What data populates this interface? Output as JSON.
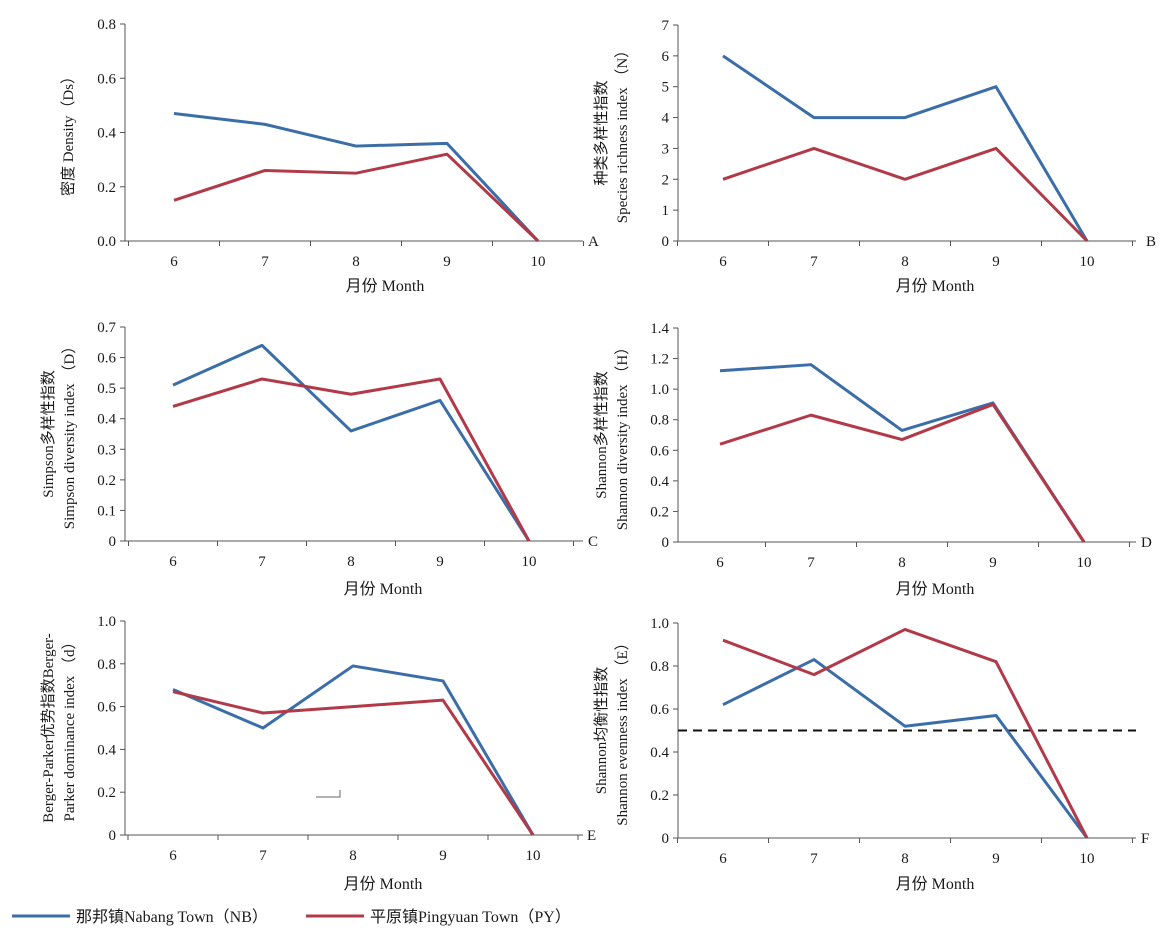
{
  "legend": {
    "items": [
      {
        "name": "那邦镇Nabang Town（NB）",
        "color": "#3b6ea8"
      },
      {
        "name": "平原镇Pingyuan Town（PY）",
        "color": "#b23a48"
      }
    ]
  },
  "chart_data": [
    {
      "type": "line",
      "panel": "A",
      "x": [
        6,
        7,
        8,
        9,
        10
      ],
      "xlabel": "月份  Month",
      "ylabel": "密度  Density（Ds）",
      "ylim": [
        0,
        0.8
      ],
      "yticks": [
        "0.0",
        "0.2",
        "0.4",
        "0.6",
        "0.8"
      ],
      "series": [
        {
          "name": "那邦镇Nabang Town（NB）",
          "values": [
            0.47,
            0.43,
            0.35,
            0.36,
            0.0
          ]
        },
        {
          "name": "平原镇Pingyuan Town（PY）",
          "values": [
            0.15,
            0.26,
            0.25,
            0.32,
            0.0
          ]
        }
      ]
    },
    {
      "type": "line",
      "panel": "B",
      "x": [
        6,
        7,
        8,
        9,
        10
      ],
      "xlabel": "月份  Month",
      "ylabel": [
        "种类多样性指数",
        "Species  richness  index  （N）"
      ],
      "ylim": [
        0,
        7
      ],
      "yticks": [
        "0",
        "1",
        "2",
        "3",
        "4",
        "5",
        "6",
        "7"
      ],
      "series": [
        {
          "name": "那邦镇Nabang Town（NB）",
          "values": [
            6,
            4,
            4,
            5,
            0
          ]
        },
        {
          "name": "平原镇Pingyuan Town（PY）",
          "values": [
            2,
            3,
            2,
            3,
            0
          ]
        }
      ]
    },
    {
      "type": "line",
      "panel": "C",
      "x": [
        6,
        7,
        8,
        9,
        10
      ],
      "xlabel": "月份  Month",
      "ylabel": [
        "Simpson多样性指数",
        "Simpson  diversity  index  （D）"
      ],
      "ylim": [
        0,
        0.7
      ],
      "yticks": [
        "0",
        "0.1",
        "0.2",
        "0.3",
        "0.4",
        "0.5",
        "0.6",
        "0.7"
      ],
      "series": [
        {
          "name": "那邦镇Nabang Town（NB）",
          "values": [
            0.51,
            0.64,
            0.36,
            0.46,
            0.0
          ]
        },
        {
          "name": "平原镇Pingyuan Town（PY）",
          "values": [
            0.44,
            0.53,
            0.48,
            0.53,
            0.0
          ]
        }
      ]
    },
    {
      "type": "line",
      "panel": "D",
      "x": [
        6,
        7,
        8,
        9,
        10
      ],
      "xlabel": "月份  Month",
      "ylabel": [
        "Shannon多样性指数",
        "Shannon  diversity  index  （H）"
      ],
      "ylim": [
        0,
        1.4
      ],
      "yticks": [
        "0",
        "0.2",
        "0.4",
        "0.6",
        "0.8",
        "1.0",
        "1.2",
        "1.4"
      ],
      "series": [
        {
          "name": "那邦镇Nabang Town（NB）",
          "values": [
            1.12,
            1.16,
            0.73,
            0.91,
            0.0
          ]
        },
        {
          "name": "平原镇Pingyuan Town（PY）",
          "values": [
            0.64,
            0.83,
            0.67,
            0.9,
            0.0
          ]
        }
      ]
    },
    {
      "type": "line",
      "panel": "E",
      "x": [
        6,
        7,
        8,
        9,
        10
      ],
      "xlabel": "月份  Month",
      "ylabel": [
        "Berger-Parker优势指数Berger-",
        "Parker  dominance  index  （d）"
      ],
      "ylim": [
        0,
        1.0
      ],
      "yticks": [
        "0",
        "0.2",
        "0.4",
        "0.6",
        "0.8",
        "1.0"
      ],
      "series": [
        {
          "name": "那邦镇Nabang Town（NB）",
          "values": [
            0.68,
            0.5,
            0.79,
            0.72,
            0.0
          ]
        },
        {
          "name": "平原镇Pingyuan Town（PY）",
          "values": [
            0.67,
            0.57,
            0.6,
            0.63,
            0.0
          ]
        }
      ]
    },
    {
      "type": "line",
      "panel": "F",
      "x": [
        6,
        7,
        8,
        9,
        10
      ],
      "xlabel": "月份  Month",
      "ylabel": [
        "Shannon均衡性指数",
        "Shannon  evenness  index  （E）"
      ],
      "ylim": [
        0,
        1.0
      ],
      "yticks": [
        "0",
        "0.2",
        "0.4",
        "0.6",
        "0.8",
        "1.0"
      ],
      "reference_line": 0.5,
      "series": [
        {
          "name": "那邦镇Nabang Town（NB）",
          "values": [
            0.62,
            0.83,
            0.52,
            0.57,
            0.0
          ]
        },
        {
          "name": "平原镇Pingyuan Town（PY）",
          "values": [
            0.92,
            0.76,
            0.97,
            0.82,
            0.0
          ]
        }
      ]
    }
  ]
}
